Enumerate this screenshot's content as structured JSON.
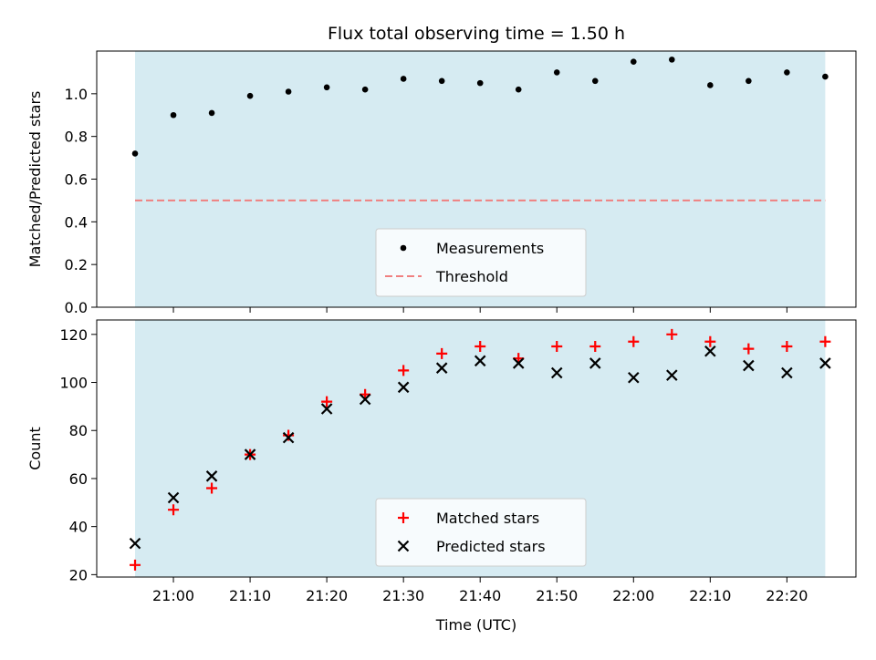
{
  "title": "Flux total observing time = 1.50 h",
  "chart_data": [
    {
      "type": "scatter",
      "ylabel": "Matched/Predicted stars",
      "ylim": [
        0,
        1.2
      ],
      "xlim": [
        "20:50",
        "22:29"
      ],
      "yticks": [
        0.0,
        0.2,
        0.4,
        0.6,
        0.8,
        1.0
      ],
      "ytick_labels": [
        "0.0",
        "0.2",
        "0.4",
        "0.6",
        "0.8",
        "1.0"
      ],
      "shaded_span": [
        "20:55",
        "22:25"
      ],
      "shade_color": "#add8e6",
      "legend_position": "lower-center",
      "x": [
        "20:55",
        "21:00",
        "21:05",
        "21:10",
        "21:15",
        "21:20",
        "21:25",
        "21:30",
        "21:35",
        "21:40",
        "21:45",
        "21:50",
        "21:55",
        "22:00",
        "22:05",
        "22:10",
        "22:15",
        "22:20",
        "22:25"
      ],
      "series": [
        {
          "name": "Measurements",
          "marker": "dot",
          "color": "#000000",
          "values": [
            0.72,
            0.9,
            0.91,
            0.99,
            1.01,
            1.03,
            1.02,
            1.07,
            1.06,
            1.05,
            1.02,
            1.1,
            1.06,
            1.15,
            1.16,
            1.04,
            1.06,
            1.1,
            1.08
          ]
        }
      ],
      "threshold": {
        "name": "Threshold",
        "value": 0.5,
        "color": "#f08080",
        "style": "dashed"
      }
    },
    {
      "type": "scatter",
      "xlabel": "Time (UTC)",
      "ylabel": "Count",
      "ylim": [
        19,
        126
      ],
      "xlim": [
        "20:50",
        "22:29"
      ],
      "yticks": [
        20,
        40,
        60,
        80,
        100,
        120
      ],
      "ytick_labels": [
        "20",
        "40",
        "60",
        "80",
        "100",
        "120"
      ],
      "xticks": [
        "21:00",
        "21:10",
        "21:20",
        "21:30",
        "21:40",
        "21:50",
        "22:00",
        "22:10",
        "22:20"
      ],
      "xtick_labels": [
        "21:00",
        "21:10",
        "21:20",
        "21:30",
        "21:40",
        "21:50",
        "22:00",
        "22:10",
        "22:20"
      ],
      "shaded_span": [
        "20:55",
        "22:25"
      ],
      "shade_color": "#add8e6",
      "legend_position": "lower-center",
      "x": [
        "20:55",
        "21:00",
        "21:05",
        "21:10",
        "21:15",
        "21:20",
        "21:25",
        "21:30",
        "21:35",
        "21:40",
        "21:45",
        "21:50",
        "21:55",
        "22:00",
        "22:05",
        "22:10",
        "22:15",
        "22:20",
        "22:25"
      ],
      "series": [
        {
          "name": "Matched stars",
          "marker": "plus",
          "color": "#ff0000",
          "values": [
            24,
            47,
            56,
            70,
            78,
            92,
            95,
            105,
            112,
            115,
            110,
            115,
            115,
            117,
            120,
            117,
            114,
            115,
            117
          ]
        },
        {
          "name": "Predicted stars",
          "marker": "x",
          "color": "#000000",
          "values": [
            33,
            52,
            61,
            70,
            77,
            89,
            93,
            98,
            106,
            109,
            108,
            104,
            108,
            102,
            103,
            113,
            107,
            104,
            108
          ]
        }
      ]
    }
  ]
}
